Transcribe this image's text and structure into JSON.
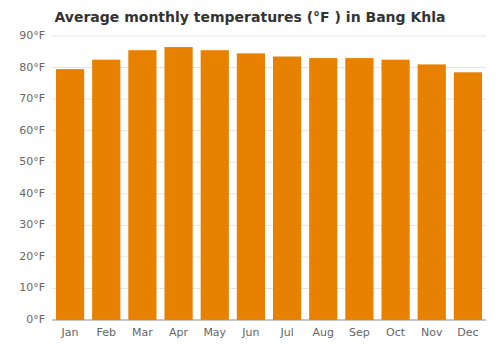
{
  "chart_data": {
    "type": "bar",
    "title": "Average monthly temperatures (°F ) in Bang Khla",
    "categories": [
      "Jan",
      "Feb",
      "Mar",
      "Apr",
      "May",
      "Jun",
      "Jul",
      "Aug",
      "Sep",
      "Oct",
      "Nov",
      "Dec"
    ],
    "values": [
      79.5,
      82.5,
      85.5,
      86.5,
      85.5,
      84.5,
      83.5,
      83.0,
      83.0,
      82.5,
      81.0,
      78.5
    ],
    "color": "#E88000",
    "ylim": [
      0,
      90
    ],
    "yticks": [
      {
        "value": 0,
        "label": "0°F"
      },
      {
        "value": 10,
        "label": "10°F"
      },
      {
        "value": 20,
        "label": "20°F"
      },
      {
        "value": 30,
        "label": "30°F"
      },
      {
        "value": 40,
        "label": "40°F"
      },
      {
        "value": 50,
        "label": "50°F"
      },
      {
        "value": 60,
        "label": "60°F"
      },
      {
        "value": 70,
        "label": "70°F"
      },
      {
        "value": 80,
        "label": "80°F"
      },
      {
        "value": 90,
        "label": "90°F"
      }
    ],
    "grid": true
  }
}
